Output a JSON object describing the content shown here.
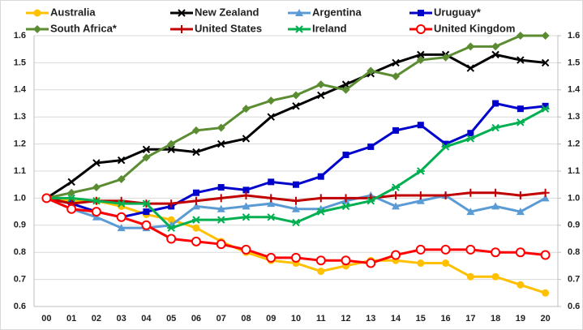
{
  "chart_data": {
    "type": "line",
    "categories": [
      "00",
      "01",
      "02",
      "03",
      "04",
      "05",
      "06",
      "07",
      "08",
      "09",
      "10",
      "11",
      "12",
      "13",
      "14",
      "15",
      "16",
      "17",
      "18",
      "19",
      "20"
    ],
    "series": [
      {
        "name": "Australia",
        "color": "#ffc000",
        "marker": "circle",
        "values": [
          1.0,
          0.99,
          0.99,
          0.97,
          0.94,
          0.92,
          0.89,
          0.84,
          0.8,
          0.77,
          0.76,
          0.73,
          0.75,
          0.77,
          0.77,
          0.76,
          0.76,
          0.71,
          0.71,
          0.68,
          0.65
        ]
      },
      {
        "name": "New Zealand",
        "color": "#000000",
        "marker": "x",
        "values": [
          1.0,
          1.06,
          1.13,
          1.14,
          1.18,
          1.18,
          1.17,
          1.2,
          1.22,
          1.3,
          1.34,
          1.38,
          1.42,
          1.46,
          1.5,
          1.53,
          1.53,
          1.48,
          1.53,
          1.51,
          1.5
        ]
      },
      {
        "name": "Argentina",
        "color": "#5b9bd5",
        "marker": "triangle",
        "values": [
          1.0,
          0.96,
          0.93,
          0.89,
          0.89,
          0.9,
          0.97,
          0.96,
          0.97,
          0.98,
          0.96,
          0.96,
          0.99,
          1.01,
          0.97,
          0.99,
          1.01,
          0.95,
          0.97,
          0.95,
          1.0
        ]
      },
      {
        "name": "Uruguay*",
        "color": "#0000cc",
        "marker": "square",
        "values": [
          1.0,
          0.98,
          0.95,
          0.93,
          0.95,
          0.97,
          1.02,
          1.04,
          1.03,
          1.06,
          1.05,
          1.08,
          1.16,
          1.19,
          1.25,
          1.27,
          1.2,
          1.24,
          1.35,
          1.33,
          1.34
        ]
      },
      {
        "name": "South Africa*",
        "color": "#5b8c32",
        "marker": "diamond",
        "values": [
          1.0,
          1.02,
          1.04,
          1.07,
          1.15,
          1.2,
          1.25,
          1.26,
          1.33,
          1.36,
          1.38,
          1.42,
          1.4,
          1.47,
          1.45,
          1.51,
          1.52,
          1.56,
          1.56,
          1.6,
          1.6
        ]
      },
      {
        "name": "United States",
        "color": "#c00000",
        "marker": "plus",
        "values": [
          1.0,
          0.98,
          0.99,
          0.99,
          0.98,
          0.98,
          0.99,
          1.0,
          1.01,
          1.0,
          0.99,
          1.0,
          1.0,
          1.0,
          1.01,
          1.01,
          1.01,
          1.02,
          1.02,
          1.01,
          1.02
        ]
      },
      {
        "name": "Ireland",
        "color": "#00b050",
        "marker": "asterisk",
        "values": [
          1.0,
          1.0,
          0.99,
          0.98,
          0.98,
          0.89,
          0.92,
          0.92,
          0.93,
          0.93,
          0.91,
          0.95,
          0.97,
          0.99,
          1.04,
          1.1,
          1.19,
          1.22,
          1.26,
          1.28,
          1.33
        ]
      },
      {
        "name": "United Kingdom",
        "color": "#ff0000",
        "marker": "open-circle",
        "values": [
          1.0,
          0.96,
          0.95,
          0.93,
          0.9,
          0.85,
          0.84,
          0.83,
          0.81,
          0.78,
          0.78,
          0.77,
          0.77,
          0.76,
          0.79,
          0.81,
          0.81,
          0.81,
          0.8,
          0.8,
          0.79
        ]
      }
    ],
    "ylim": [
      0.6,
      1.6
    ],
    "yticks": [
      0.6,
      0.7,
      0.8,
      0.9,
      {
        "value": 1,
        "label": "1.0"
      },
      1.1,
      1.2,
      1.3,
      1.4,
      1.5,
      1.6
    ],
    "y2lim": [
      0.6,
      1.6
    ],
    "y2ticks": [
      0.6,
      0.7,
      0.8,
      0.9,
      {
        "value": 1,
        "label": "1.0"
      },
      1.1,
      1.2,
      1.3,
      1.4,
      1.5,
      1.6
    ],
    "grid": true
  }
}
